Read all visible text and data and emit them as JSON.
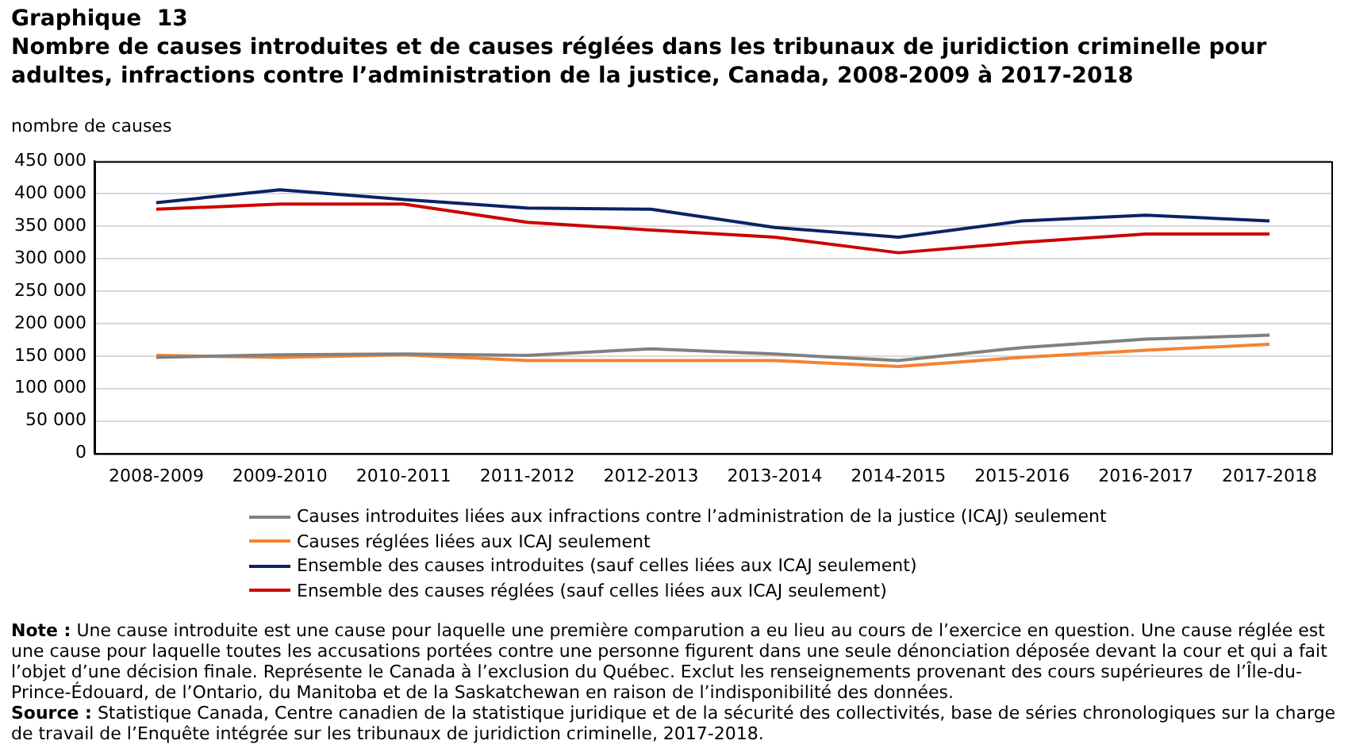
{
  "chart_data": {
    "type": "line",
    "title": "Graphique  13",
    "subtitle": "Nombre de causes introduites et de causes réglées dans les tribunaux de juridiction criminelle pour adultes, infractions contre l’administration de la justice, Canada, 2008-2009 à 2017-2018",
    "ylabel": "nombre de causes",
    "categories": [
      "2008-2009",
      "2009-2010",
      "2010-2011",
      "2011-2012",
      "2012-2013",
      "2013-2014",
      "2014-2015",
      "2015-2016",
      "2016-2017",
      "2017-2018"
    ],
    "series": [
      {
        "name": "Causes introduites liées aux infractions contre l’administration de la justice (ICAJ) seulement",
        "color": "#808080",
        "values": [
          148000,
          152000,
          153000,
          151000,
          161000,
          153000,
          143000,
          163000,
          176000,
          182000
        ]
      },
      {
        "name": "Causes réglées liées aux ICAJ seulement",
        "color": "#f58231",
        "values": [
          151000,
          148000,
          152000,
          143000,
          143000,
          143000,
          134000,
          148000,
          159000,
          168000
        ]
      },
      {
        "name": "Ensemble des causes introduites (sauf celles liées aux ICAJ seulement)",
        "color": "#0a2366",
        "values": [
          386000,
          406000,
          391000,
          378000,
          376000,
          348000,
          333000,
          358000,
          367000,
          358000
        ]
      },
      {
        "name": "Ensemble des causes réglées (sauf celles liées aux ICAJ seulement)",
        "color": "#cc0000",
        "values": [
          376000,
          384000,
          384000,
          356000,
          344000,
          333000,
          309000,
          325000,
          338000,
          338000
        ]
      }
    ],
    "ylim": [
      0,
      450000
    ],
    "yticks": [
      0,
      {
        "value": 50000,
        "label": "50 000"
      },
      {
        "value": 100000,
        "label": "100 000"
      },
      {
        "value": 150000,
        "label": "150 000"
      },
      {
        "value": 200000,
        "label": "200 000"
      },
      {
        "value": 250000,
        "label": "250 000"
      },
      {
        "value": 300000,
        "label": "300 000"
      },
      {
        "value": 350000,
        "label": "350 000"
      },
      {
        "value": 400000,
        "label": "400 000"
      },
      {
        "value": 450000,
        "label": "450 000"
      }
    ],
    "grid": "y",
    "legend": "bottom",
    "marker": "none",
    "line_style": "solid",
    "annotations": [
      "Note : Une cause introduite est une cause pour laquelle une première comparution a eu lieu au cours de l’exercice en question. Une cause réglée est une cause pour laquelle toutes les accusations portées contre une personne figurent dans une seule dénonciation déposée devant la cour et qui a fait l’objet d’une décision finale. Représente le Canada à l’exclusion du Québec. Exclut les renseignements provenant des cours supérieures de l’Île-du-Prince-Édouard, de l’Ontario, du Manitoba et de la Saskatchewan en raison de l’indisponibilité des données.",
      "Source : Statistique Canada, Centre canadien de la statistique juridique et de la sécurité des collectivités, base de séries chronologiques sur la charge de travail de l’Enquête intégrée sur les tribunaux de juridiction criminelle, 2017-2018."
    ]
  }
}
